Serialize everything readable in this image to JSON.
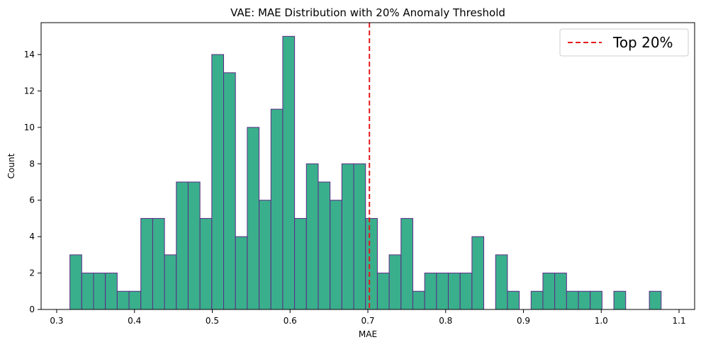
{
  "chart_data": {
    "type": "bar",
    "title": "VAE: MAE Distribution with 20% Anomaly Threshold",
    "xlabel": "MAE",
    "ylabel": "Count",
    "xlim": [
      0.28,
      1.12
    ],
    "ylim": [
      0,
      15.75
    ],
    "bin_start": 0.317,
    "bin_width": 0.0152,
    "counts": [
      3,
      2,
      2,
      2,
      1,
      1,
      5,
      5,
      3,
      7,
      7,
      5,
      14,
      13,
      4,
      10,
      6,
      11,
      15,
      5,
      8,
      7,
      6,
      8,
      8,
      5,
      2,
      3,
      5,
      1,
      2,
      2,
      2,
      2,
      4,
      0,
      3,
      1,
      0,
      1,
      2,
      2,
      1,
      1,
      1,
      0,
      1,
      0,
      0,
      1
    ],
    "x_ticks": [
      "0.3",
      "0.4",
      "0.5",
      "0.6",
      "0.7",
      "0.8",
      "0.9",
      "1.0",
      "1.1"
    ],
    "x_tick_values": [
      0.3,
      0.4,
      0.5,
      0.6,
      0.7,
      0.8,
      0.9,
      1.0,
      1.1
    ],
    "y_ticks": [
      "0",
      "2",
      "4",
      "6",
      "8",
      "10",
      "12",
      "14"
    ],
    "y_tick_values": [
      0,
      2,
      4,
      6,
      8,
      10,
      12,
      14
    ],
    "threshold": 0.702,
    "legend": {
      "label": "Top 20%",
      "position": "top-right"
    },
    "colors": {
      "bar_fill": "#3aaf8c",
      "bar_edge": "#5b2a86",
      "threshold": "#e41a1c"
    },
    "grid": false
  }
}
